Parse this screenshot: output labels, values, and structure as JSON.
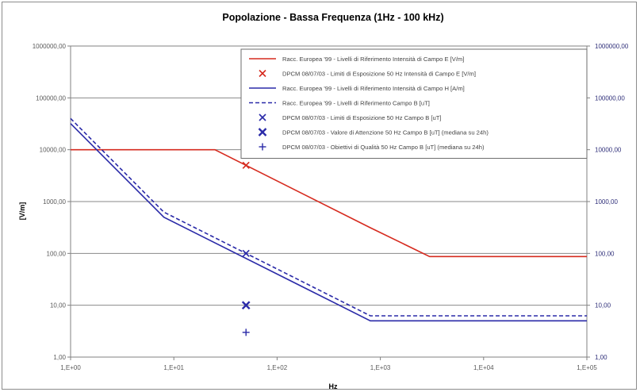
{
  "chart_data": {
    "type": "line",
    "title": "Popolazione - Bassa Frequenza (1Hz - 100 kHz)",
    "xlabel": "Hz",
    "ylabel": "[V/m]",
    "xscale": "log",
    "yscale": "log",
    "xlim": [
      1,
      100000
    ],
    "ylim": [
      1,
      1000000
    ],
    "grid": "horizontal",
    "legend_position": "top-right",
    "x_tick_labels": [
      "1,E+00",
      "1,E+01",
      "1,E+02",
      "1,E+03",
      "1,E+04",
      "1,E+05"
    ],
    "x_tick_values": [
      1,
      10,
      100,
      1000,
      10000,
      100000
    ],
    "y_tick_labels": [
      "1,00",
      "10,00",
      "100,00",
      "1000,00",
      "10000,00",
      "100000,00",
      "1000000,00"
    ],
    "y_tick_values": [
      1,
      10,
      100,
      1000,
      10000,
      100000,
      1000000
    ],
    "y2_tick_labels": [
      "1,00",
      "10,00",
      "100,00",
      "1000,00",
      "10000,00",
      "100000,00",
      "1000000,00"
    ],
    "series": [
      {
        "name": "Racc. Europea '99 - Livelli di Riferimento Intensità di Campo E [V/m]",
        "kind": "line",
        "style": "solid",
        "color": "#d62b1f",
        "x": [
          1,
          25,
          800,
          3000,
          100000
        ],
        "y": [
          10000,
          10000,
          312,
          87,
          87
        ]
      },
      {
        "name": "DPCM 08/07/03 - Limiti di Esposizione 50 Hz Intensità di Campo E [V/m]",
        "kind": "marker",
        "marker": "x",
        "color": "#d62b1f",
        "x": [
          50
        ],
        "y": [
          5000
        ]
      },
      {
        "name": "Racc. Europea '99  - Livelli di Riferimento Intensità di Campo H [A/m]",
        "kind": "line",
        "style": "solid",
        "color": "#2a2aa8",
        "x": [
          1,
          8,
          800,
          100000
        ],
        "y": [
          32000,
          500,
          5,
          5
        ]
      },
      {
        "name": "Racc. Europea '99  - Livelli di Riferimento Campo B [uT]",
        "kind": "line",
        "style": "dashed",
        "color": "#2a2aa8",
        "x": [
          1,
          8,
          800,
          100000
        ],
        "y": [
          40000,
          625,
          6.25,
          6.25
        ]
      },
      {
        "name": "DPCM 08/07/03 - Limiti di Esposizione 50 Hz Campo B [uT]",
        "kind": "marker",
        "marker": "x",
        "color": "#2a2aa8",
        "x": [
          50
        ],
        "y": [
          100
        ]
      },
      {
        "name": "DPCM 08/07/03 - Valore di Attenzione 50 Hz Campo B [uT] (mediana su 24h)",
        "kind": "marker",
        "marker": "xbold",
        "color": "#2a2aa8",
        "x": [
          50
        ],
        "y": [
          10
        ]
      },
      {
        "name": "DPCM 08/07/03 - Obiettivi di Qualità 50 Hz Campo B [uT] (mediana su 24h)",
        "kind": "marker",
        "marker": "plus",
        "color": "#2a2aa8",
        "x": [
          50
        ],
        "y": [
          3
        ]
      }
    ]
  }
}
